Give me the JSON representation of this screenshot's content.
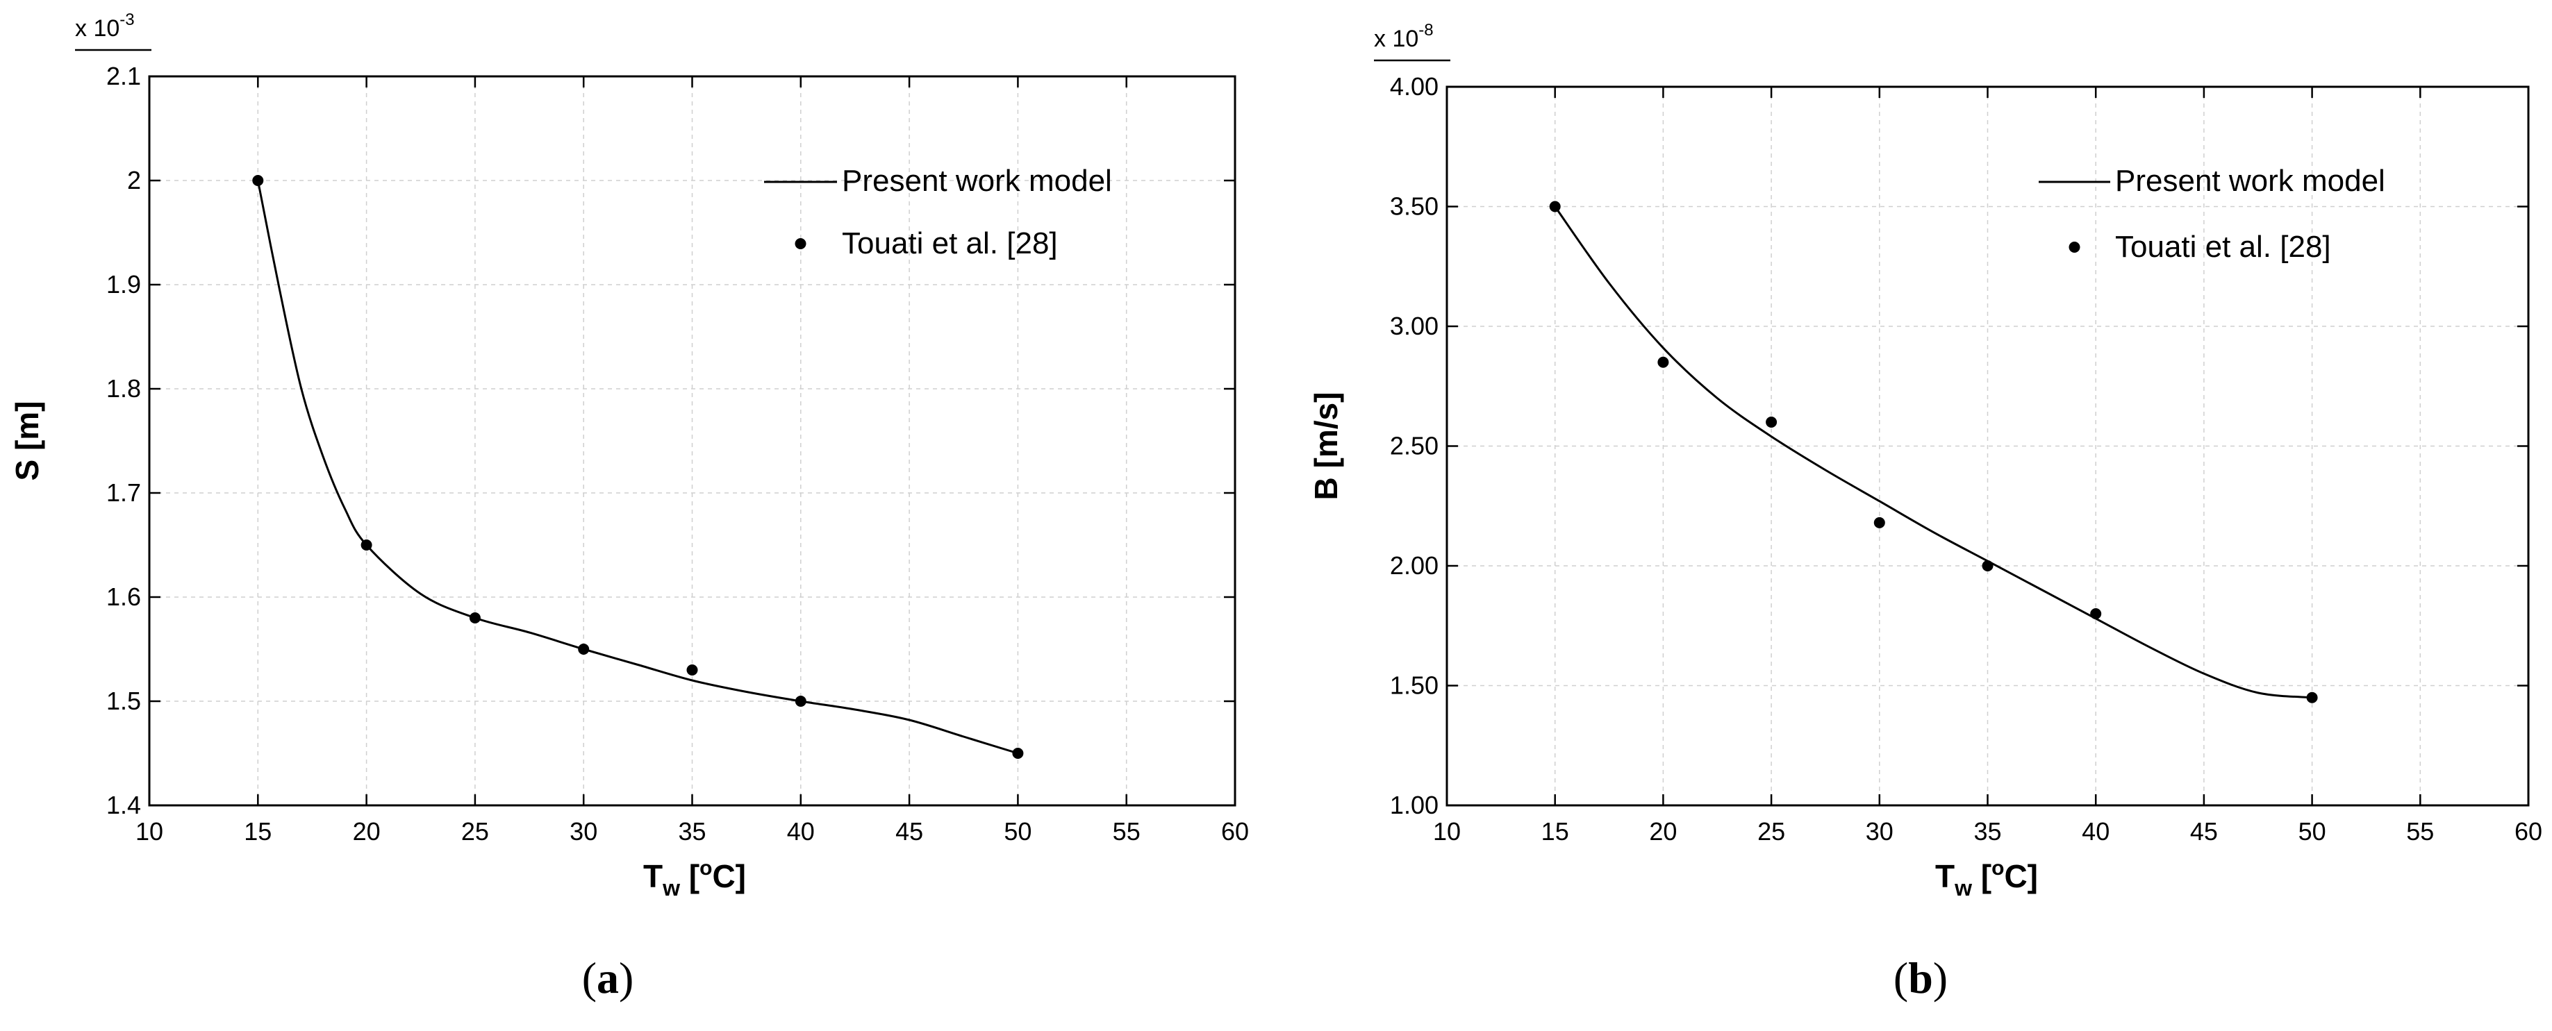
{
  "chart_data": [
    {
      "type": "line",
      "panel_label": "a",
      "xlabel": {
        "main": "T",
        "sub": "w",
        "open": " [",
        "sup": "o",
        "close": "C]"
      },
      "ylabel": "S [m]",
      "y_multiplier": {
        "base": "x 10",
        "exp": "-3"
      },
      "xlim": [
        10,
        60
      ],
      "ylim": [
        1.4,
        2.1
      ],
      "x_ticks": [
        10,
        15,
        20,
        25,
        30,
        35,
        40,
        45,
        50,
        55,
        60
      ],
      "y_ticks": [
        1.4,
        1.5,
        1.6,
        1.7,
        1.8,
        1.9,
        2.0,
        2.1
      ],
      "y_tick_labels": [
        "1.4",
        "1.5",
        "1.6",
        "1.7",
        "1.8",
        "1.9",
        "2",
        "2.1"
      ],
      "grid": true,
      "legend_position": "top-right",
      "series": [
        {
          "name": "Present work model",
          "style": "line",
          "x": [
            15,
            16,
            17,
            18,
            19,
            20,
            22.5,
            25,
            27.5,
            30,
            32.5,
            35,
            37.5,
            40,
            42.5,
            45,
            47.5,
            50
          ],
          "y": [
            2.0,
            1.895,
            1.8,
            1.735,
            1.685,
            1.65,
            1.603,
            1.58,
            1.566,
            1.55,
            1.535,
            1.52,
            1.509,
            1.5,
            1.492,
            1.482,
            1.466,
            1.45
          ]
        },
        {
          "name": "Touati et al. [28]",
          "style": "points",
          "x": [
            15,
            20,
            25,
            30,
            35,
            40,
            50
          ],
          "y": [
            2.0,
            1.65,
            1.58,
            1.55,
            1.53,
            1.5,
            1.45
          ]
        }
      ]
    },
    {
      "type": "line",
      "panel_label": "b",
      "xlabel": {
        "main": "T",
        "sub": "w",
        "open": " [",
        "sup": "o",
        "close": "C]"
      },
      "ylabel": "B [m/s]",
      "y_multiplier": {
        "base": "x 10",
        "exp": "-8"
      },
      "xlim": [
        10,
        60
      ],
      "ylim": [
        1.0,
        4.0
      ],
      "x_ticks": [
        10,
        15,
        20,
        25,
        30,
        35,
        40,
        45,
        50,
        55,
        60
      ],
      "y_ticks": [
        1.0,
        1.5,
        2.0,
        2.5,
        3.0,
        3.5,
        4.0
      ],
      "y_tick_labels": [
        "1.00",
        "1.50",
        "2.00",
        "2.50",
        "3.00",
        "3.50",
        "4.00"
      ],
      "grid": true,
      "legend_position": "top-right",
      "series": [
        {
          "name": "Present work model",
          "style": "line",
          "x": [
            15,
            17.5,
            20,
            22.5,
            25,
            27.5,
            30,
            32.5,
            35,
            37.5,
            40,
            42.5,
            45,
            47.5,
            50
          ],
          "y": [
            3.5,
            3.18,
            2.91,
            2.7,
            2.54,
            2.4,
            2.27,
            2.14,
            2.02,
            1.9,
            1.78,
            1.66,
            1.55,
            1.47,
            1.45
          ]
        },
        {
          "name": "Touati et al. [28]",
          "style": "points",
          "x": [
            15,
            20,
            25,
            30,
            35,
            40,
            50
          ],
          "y": [
            3.5,
            2.85,
            2.6,
            2.18,
            2.0,
            1.8,
            1.45
          ]
        }
      ]
    }
  ]
}
